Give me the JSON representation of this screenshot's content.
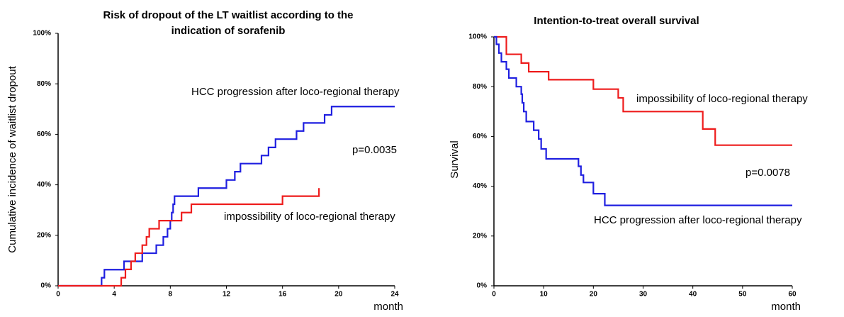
{
  "chart_data": [
    {
      "type": "line",
      "step": true,
      "title": [
        "Risk of dropout of the LT waitlist according to the",
        "indication of sorafenib"
      ],
      "y_label": "Cumulative incidence of waitlist dropout",
      "x_label": "month",
      "annotations": [
        "p=0.0035"
      ],
      "xlim": [
        0,
        24
      ],
      "xticks": [
        0,
        4,
        8,
        12,
        16,
        20,
        24
      ],
      "ylim": [
        0,
        100
      ],
      "yticks": [
        {
          "value": 0,
          "label": "0%"
        },
        {
          "value": 20,
          "label": "20%"
        },
        {
          "value": 40,
          "label": "40%"
        },
        {
          "value": 60,
          "label": "60%"
        },
        {
          "value": 80,
          "label": "80%"
        },
        {
          "value": 100,
          "label": "100%"
        }
      ],
      "series": [
        {
          "name": "HCC progression after loco-regional therapy",
          "color": "#1f1fe0",
          "x": [
            0,
            3.1,
            3.3,
            4.7,
            6,
            7,
            7.5,
            7.8,
            8,
            8.1,
            8.2,
            8.3,
            10,
            12,
            12.6,
            13,
            14.5,
            15,
            15.5,
            17,
            17.5,
            19,
            19.5,
            24
          ],
          "values": [
            0,
            3.2,
            6.4,
            9.7,
            12.9,
            16.1,
            19.4,
            22.6,
            25.8,
            29,
            32.3,
            35.5,
            38.7,
            41.9,
            45.2,
            48.4,
            51.6,
            54.8,
            58.1,
            61.3,
            64.5,
            67.7,
            71,
            71
          ]
        },
        {
          "name": "impossibility of loco-regional therapy",
          "color": "#ee1c1c",
          "x": [
            0,
            4.5,
            4.8,
            5.2,
            5.5,
            6,
            6.3,
            6.5,
            7.2,
            8.8,
            9.5,
            16,
            18.6
          ],
          "values": [
            0,
            3.2,
            6.5,
            9.7,
            12.9,
            16.1,
            19.4,
            22.6,
            25.8,
            29,
            32.3,
            35.5,
            38.7
          ]
        }
      ]
    },
    {
      "type": "line",
      "step": true,
      "title": [
        "Intention-to-treat  overall survival"
      ],
      "y_label": "Survival",
      "x_label": "month",
      "annotations": [
        "p=0.0078"
      ],
      "xlim": [
        0,
        60
      ],
      "xticks": [
        0,
        10,
        20,
        30,
        40,
        50,
        60
      ],
      "ylim": [
        0,
        100
      ],
      "yticks": [
        {
          "value": 0,
          "label": "0%"
        },
        {
          "value": 20,
          "label": "20%"
        },
        {
          "value": 40,
          "label": "40%"
        },
        {
          "value": 60,
          "label": "60%"
        },
        {
          "value": 80,
          "label": "80%"
        },
        {
          "value": 100,
          "label": "100%"
        }
      ],
      "series": [
        {
          "name": "impossibility of loco-regional therapy",
          "color": "#ee1c1c",
          "x": [
            0,
            2.5,
            5.5,
            7,
            11,
            20,
            25,
            26,
            42,
            44.5,
            60
          ],
          "values": [
            100,
            93,
            89.5,
            86,
            82.8,
            79,
            75.5,
            70,
            63,
            56.5,
            56.5
          ]
        },
        {
          "name": "HCC progression after loco-regional therapy",
          "color": "#1f1fe0",
          "x": [
            0,
            0.5,
            1,
            1.5,
            2.5,
            3,
            4.5,
            5.5,
            5.7,
            6,
            6.5,
            8,
            9,
            9.5,
            10.5,
            17,
            17.5,
            18,
            20,
            22.3,
            60
          ],
          "values": [
            100,
            97,
            93.5,
            90,
            87,
            83.5,
            80,
            77,
            73.5,
            70,
            66,
            62.5,
            59,
            55,
            51,
            48,
            44.5,
            41.5,
            37,
            32.3,
            32.3
          ]
        }
      ]
    }
  ]
}
